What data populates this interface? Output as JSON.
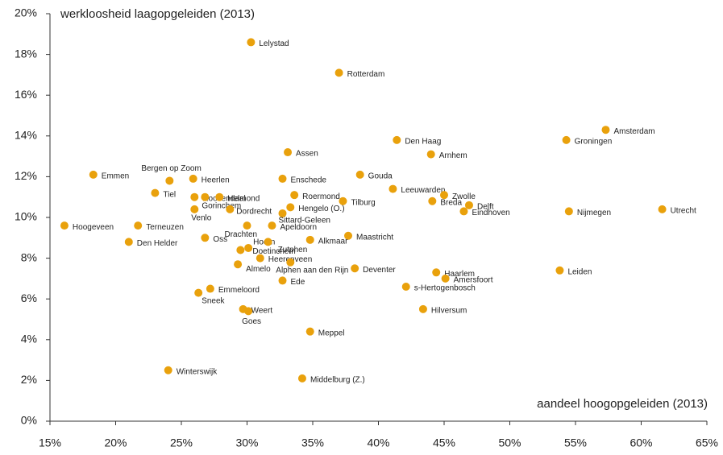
{
  "chart_data": {
    "type": "scatter",
    "y_axis_title": "werkloosheid laagopgeleiden (2013)",
    "x_axis_title": "aandeel hoogopgeleiden (2013)",
    "color": "#e9a10c",
    "xlim": [
      15,
      65
    ],
    "ylim": [
      0,
      20
    ],
    "xticks": [
      {
        "value": 15,
        "label": "15%"
      },
      {
        "value": 20,
        "label": "20%"
      },
      {
        "value": 25,
        "label": "25%"
      },
      {
        "value": 30,
        "label": "30%"
      },
      {
        "value": 35,
        "label": "35%"
      },
      {
        "value": 40,
        "label": "40%"
      },
      {
        "value": 45,
        "label": "45%"
      },
      {
        "value": 50,
        "label": "50%"
      },
      {
        "value": 55,
        "label": "55%"
      },
      {
        "value": 60,
        "label": "60%"
      },
      {
        "value": 65,
        "label": "65%"
      }
    ],
    "yticks": [
      {
        "value": 0,
        "label": "0%"
      },
      {
        "value": 2,
        "label": "2%"
      },
      {
        "value": 4,
        "label": "4%"
      },
      {
        "value": 6,
        "label": "6%"
      },
      {
        "value": 8,
        "label": "8%"
      },
      {
        "value": 10,
        "label": "10%"
      },
      {
        "value": 12,
        "label": "12%"
      },
      {
        "value": 14,
        "label": "14%"
      },
      {
        "value": 16,
        "label": "16%"
      },
      {
        "value": 18,
        "label": "18%"
      },
      {
        "value": 20,
        "label": "20%"
      }
    ],
    "labels": [
      "Lelystad",
      "Rotterdam",
      "Den Haag",
      "Amsterdam",
      "Groningen",
      "Arnhem",
      "Assen",
      "Emmen",
      "Bergen op Zoom",
      "Heerlen",
      "Enschede",
      "Gouda",
      "Leeuwarden",
      "Tiel",
      "Roosendaal",
      "Gorinchem",
      "Helmond",
      "Roermond",
      "Zwolle",
      "Breda",
      "Delft",
      "Eindhoven",
      "Tilburg",
      "Hengelo (O.)",
      "Sittard-Geleen",
      "Venlo",
      "Dordrecht",
      "Nijmegen",
      "Utrecht",
      "Hoogeveen",
      "Terneuzen",
      "Apeldoorn",
      "Drachten",
      "Oss",
      "Maastricht",
      "Den Helder",
      "Alkmaar",
      "Hoorn",
      "Doetinchem",
      "Zutphen",
      "Heerenveen",
      "Almelo",
      "Alphen aan den Rijn",
      "Deventer",
      "Haarlem",
      "Amersfoort",
      "Leiden",
      "Ede",
      "s-Hertogenbosch",
      "Emmeloord",
      "Sneek",
      "Weert",
      "Goes",
      "Hilversum",
      "Meppel",
      "Winterswijk",
      "Middelburg (Z.)"
    ],
    "x": [
      30.3,
      37.0,
      41.4,
      57.3,
      54.3,
      44.0,
      33.1,
      18.3,
      24.1,
      25.9,
      32.7,
      38.6,
      41.1,
      23.0,
      26.0,
      26.8,
      27.9,
      33.6,
      45.0,
      44.1,
      46.9,
      46.5,
      37.3,
      33.3,
      32.7,
      26.0,
      28.7,
      54.5,
      61.6,
      16.1,
      21.7,
      31.9,
      30.0,
      26.8,
      37.7,
      21.0,
      34.8,
      30.1,
      29.5,
      31.6,
      31.0,
      29.3,
      33.3,
      38.2,
      44.4,
      45.1,
      53.8,
      32.7,
      42.1,
      27.2,
      26.3,
      29.7,
      30.1,
      43.4,
      34.8,
      24.0,
      34.2
    ],
    "values": [
      18.6,
      17.1,
      13.8,
      14.3,
      13.8,
      13.1,
      13.2,
      12.1,
      11.8,
      11.9,
      11.9,
      12.1,
      11.4,
      11.2,
      11.0,
      11.0,
      11.0,
      11.1,
      11.1,
      10.8,
      10.6,
      10.3,
      10.8,
      10.5,
      10.2,
      10.4,
      10.4,
      10.3,
      10.4,
      9.6,
      9.6,
      9.6,
      9.6,
      9.0,
      9.1,
      8.8,
      8.9,
      8.5,
      8.4,
      8.8,
      8.0,
      7.7,
      7.8,
      7.5,
      7.3,
      7.0,
      7.4,
      6.9,
      6.6,
      6.5,
      6.3,
      5.5,
      5.4,
      5.5,
      4.4,
      2.5,
      2.1
    ]
  }
}
